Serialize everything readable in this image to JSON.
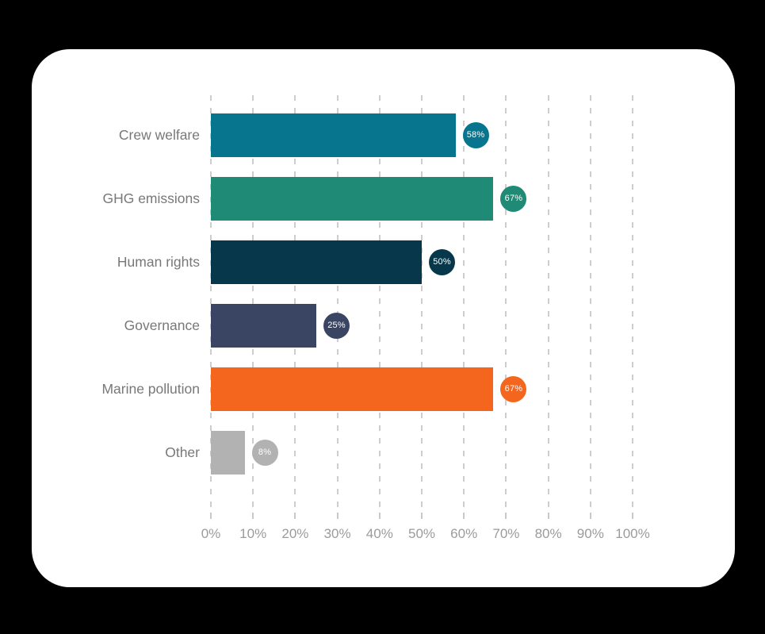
{
  "canvas": {
    "background": "#000000",
    "card_background": "#FFFFFF"
  },
  "chart_data": {
    "type": "bar",
    "orientation": "horizontal",
    "title": "",
    "xlabel": "",
    "ylabel": "",
    "categories": [
      "Crew welfare",
      "GHG emissions",
      "Human rights",
      "Governance",
      "Marine pollution",
      "Other"
    ],
    "values": [
      58,
      67,
      50,
      25,
      67,
      8
    ],
    "value_labels": [
      "58%",
      "67%",
      "50%",
      "25%",
      "67%",
      "8%"
    ],
    "bar_colors": [
      "#07758E",
      "#1F8A75",
      "#06374A",
      "#3A4564",
      "#F4661E",
      "#B2B2B2"
    ],
    "xlim": [
      0,
      100
    ],
    "x_tick_labels": [
      "0%",
      "10%",
      "20%",
      "30%",
      "40%",
      "50%",
      "60%",
      "70%",
      "80%",
      "90%",
      "100%"
    ],
    "x_tick_values": [
      0,
      10,
      20,
      30,
      40,
      50,
      60,
      70,
      80,
      90,
      100
    ],
    "grid": "dashed-vertical",
    "legend": "none",
    "colors": {
      "gridline": "#CDCDCD",
      "axis_label": "#9B9B9B",
      "category_label": "#77787A",
      "badge_text": "#FFFFFF"
    }
  }
}
